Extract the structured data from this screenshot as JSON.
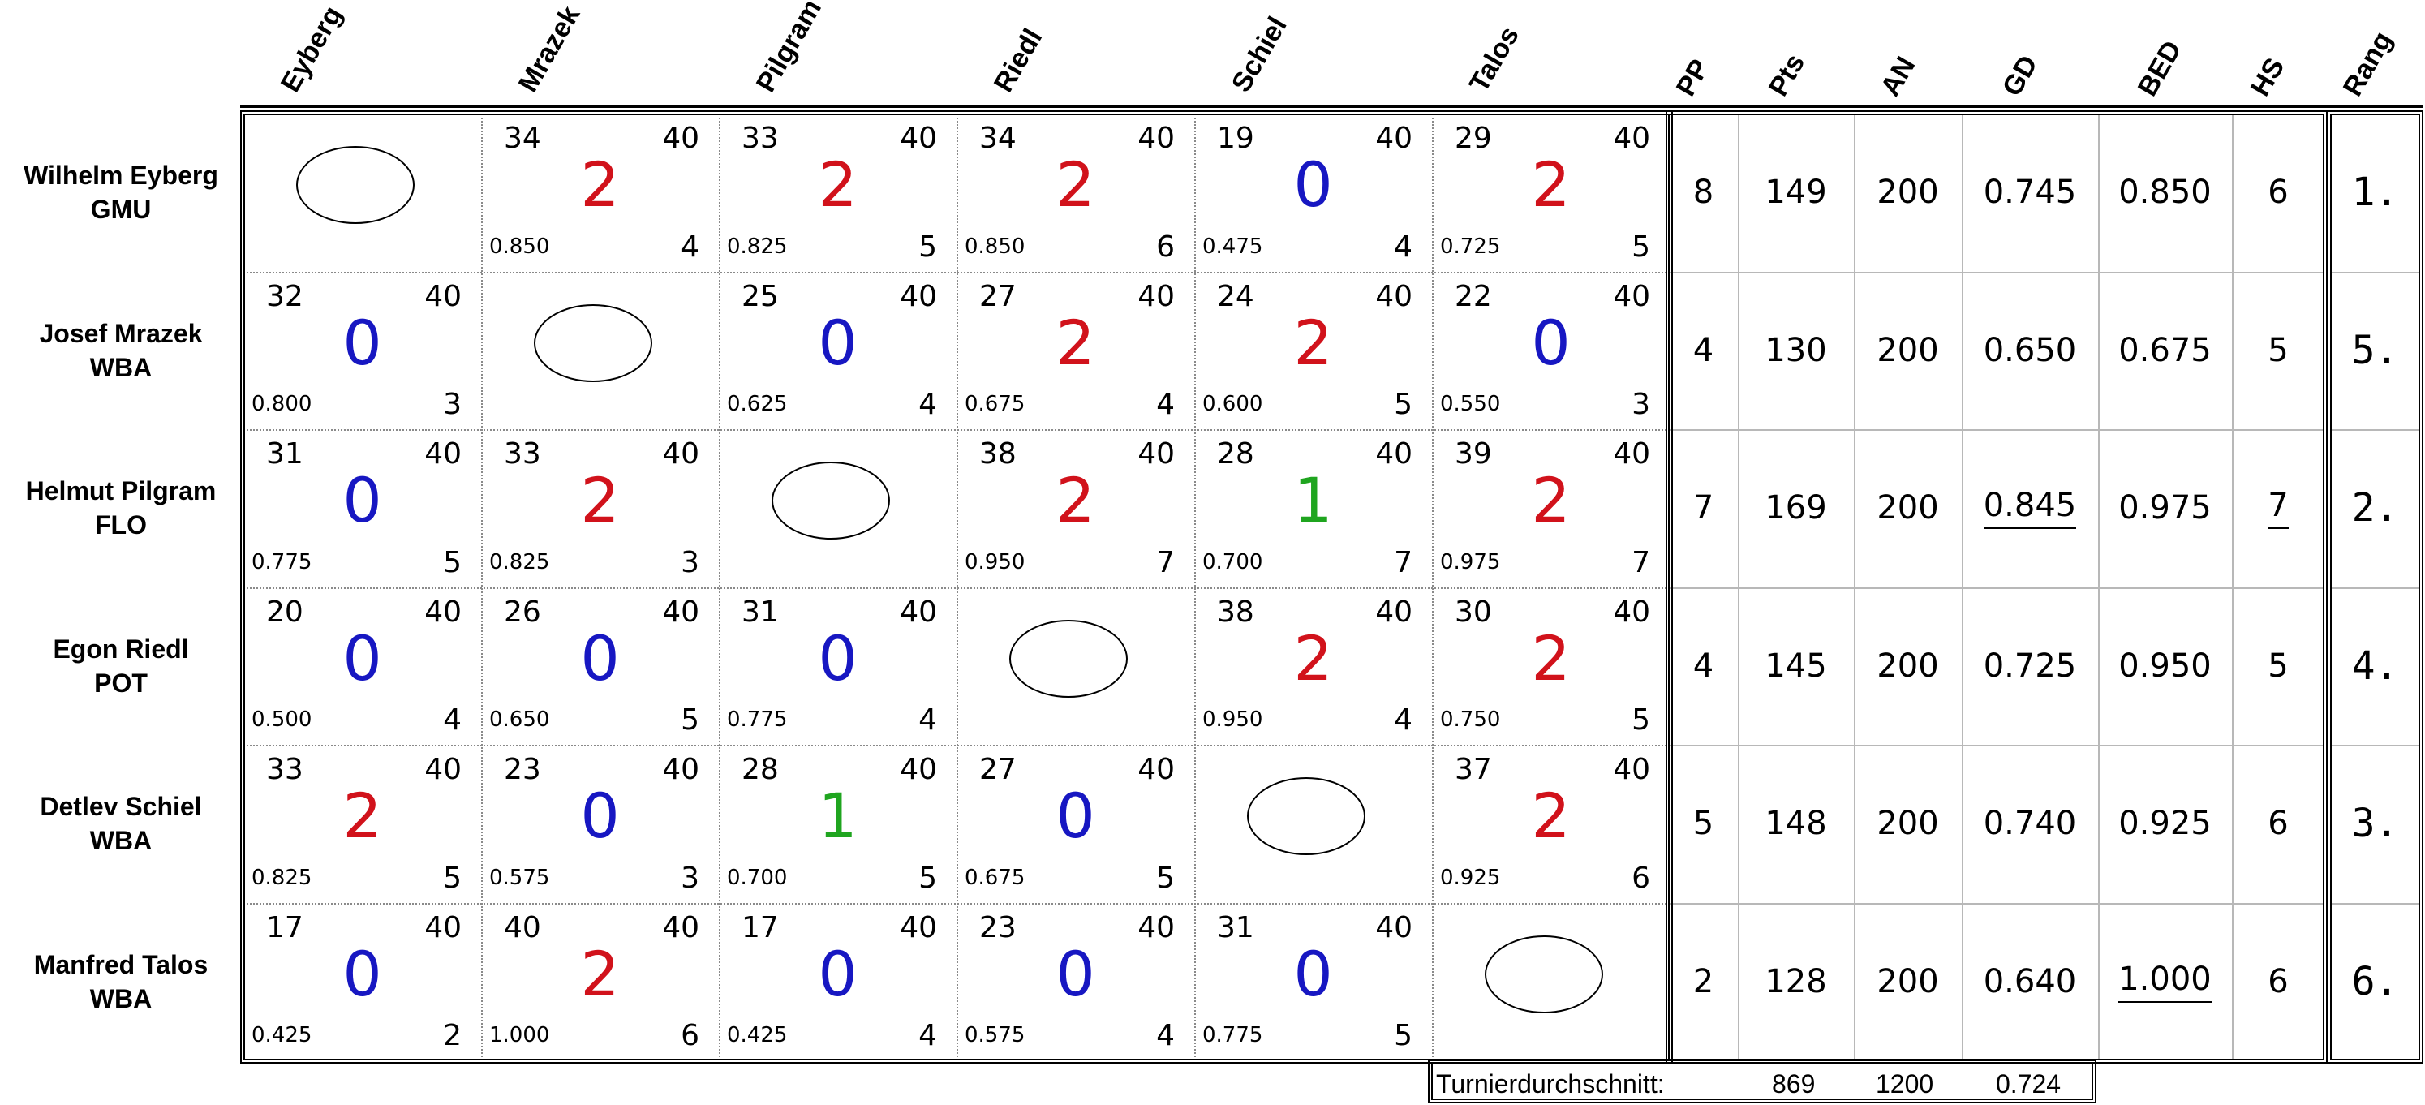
{
  "columns": [
    "Eyberg",
    "Mrazek",
    "Pilgram",
    "Riedl",
    "Schiel",
    "Talos"
  ],
  "stat_headers": [
    "PP",
    "Pts",
    "AN",
    "GD",
    "BED",
    "HS"
  ],
  "rank_header": "Rang",
  "players": [
    {
      "name": "Wilhelm Eyberg",
      "club": "GMU"
    },
    {
      "name": "Josef Mrazek",
      "club": "WBA"
    },
    {
      "name": "Helmut Pilgram",
      "club": "FLO"
    },
    {
      "name": "Egon Riedl",
      "club": "POT"
    },
    {
      "name": "Detlev Schiel",
      "club": "WBA"
    },
    {
      "name": "Manfred Talos",
      "club": "WBA"
    }
  ],
  "matrix": [
    [
      null,
      {
        "own": "34",
        "target": "40",
        "points": "2",
        "avg": "0.850",
        "hs": "4"
      },
      {
        "own": "33",
        "target": "40",
        "points": "2",
        "avg": "0.825",
        "hs": "5"
      },
      {
        "own": "34",
        "target": "40",
        "points": "2",
        "avg": "0.850",
        "hs": "6"
      },
      {
        "own": "19",
        "target": "40",
        "points": "0",
        "avg": "0.475",
        "hs": "4"
      },
      {
        "own": "29",
        "target": "40",
        "points": "2",
        "avg": "0.725",
        "hs": "5"
      }
    ],
    [
      {
        "own": "32",
        "target": "40",
        "points": "0",
        "avg": "0.800",
        "hs": "3"
      },
      null,
      {
        "own": "25",
        "target": "40",
        "points": "0",
        "avg": "0.625",
        "hs": "4"
      },
      {
        "own": "27",
        "target": "40",
        "points": "2",
        "avg": "0.675",
        "hs": "4"
      },
      {
        "own": "24",
        "target": "40",
        "points": "2",
        "avg": "0.600",
        "hs": "5"
      },
      {
        "own": "22",
        "target": "40",
        "points": "0",
        "avg": "0.550",
        "hs": "3"
      }
    ],
    [
      {
        "own": "31",
        "target": "40",
        "points": "0",
        "avg": "0.775",
        "hs": "5"
      },
      {
        "own": "33",
        "target": "40",
        "points": "2",
        "avg": "0.825",
        "hs": "3"
      },
      null,
      {
        "own": "38",
        "target": "40",
        "points": "2",
        "avg": "0.950",
        "hs": "7"
      },
      {
        "own": "28",
        "target": "40",
        "points": "1",
        "avg": "0.700",
        "hs": "7"
      },
      {
        "own": "39",
        "target": "40",
        "points": "2",
        "avg": "0.975",
        "hs": "7"
      }
    ],
    [
      {
        "own": "20",
        "target": "40",
        "points": "0",
        "avg": "0.500",
        "hs": "4"
      },
      {
        "own": "26",
        "target": "40",
        "points": "0",
        "avg": "0.650",
        "hs": "5"
      },
      {
        "own": "31",
        "target": "40",
        "points": "0",
        "avg": "0.775",
        "hs": "4"
      },
      null,
      {
        "own": "38",
        "target": "40",
        "points": "2",
        "avg": "0.950",
        "hs": "4"
      },
      {
        "own": "30",
        "target": "40",
        "points": "2",
        "avg": "0.750",
        "hs": "5"
      }
    ],
    [
      {
        "own": "33",
        "target": "40",
        "points": "2",
        "avg": "0.825",
        "hs": "5"
      },
      {
        "own": "23",
        "target": "40",
        "points": "0",
        "avg": "0.575",
        "hs": "3"
      },
      {
        "own": "28",
        "target": "40",
        "points": "1",
        "avg": "0.700",
        "hs": "5"
      },
      {
        "own": "27",
        "target": "40",
        "points": "0",
        "avg": "0.675",
        "hs": "5"
      },
      null,
      {
        "own": "37",
        "target": "40",
        "points": "2",
        "avg": "0.925",
        "hs": "6"
      }
    ],
    [
      {
        "own": "17",
        "target": "40",
        "points": "0",
        "avg": "0.425",
        "hs": "2"
      },
      {
        "own": "40",
        "target": "40",
        "points": "2",
        "avg": "1.000",
        "hs": "6"
      },
      {
        "own": "17",
        "target": "40",
        "points": "0",
        "avg": "0.425",
        "hs": "4"
      },
      {
        "own": "23",
        "target": "40",
        "points": "0",
        "avg": "0.575",
        "hs": "4"
      },
      {
        "own": "31",
        "target": "40",
        "points": "0",
        "avg": "0.775",
        "hs": "5"
      },
      null
    ]
  ],
  "stats": [
    {
      "pp": "8",
      "pts": "149",
      "an": "200",
      "gd": "0.745",
      "bed": "0.850",
      "hs": "6",
      "rang": "1.",
      "gd_best": false,
      "bed_best": false,
      "hs_best": false
    },
    {
      "pp": "4",
      "pts": "130",
      "an": "200",
      "gd": "0.650",
      "bed": "0.675",
      "hs": "5",
      "rang": "5.",
      "gd_best": false,
      "bed_best": false,
      "hs_best": false
    },
    {
      "pp": "7",
      "pts": "169",
      "an": "200",
      "gd": "0.845",
      "bed": "0.975",
      "hs": "7",
      "rang": "2.",
      "gd_best": true,
      "bed_best": false,
      "hs_best": true
    },
    {
      "pp": "4",
      "pts": "145",
      "an": "200",
      "gd": "0.725",
      "bed": "0.950",
      "hs": "5",
      "rang": "4.",
      "gd_best": false,
      "bed_best": false,
      "hs_best": false
    },
    {
      "pp": "5",
      "pts": "148",
      "an": "200",
      "gd": "0.740",
      "bed": "0.925",
      "hs": "6",
      "rang": "3.",
      "gd_best": false,
      "bed_best": false,
      "hs_best": false
    },
    {
      "pp": "2",
      "pts": "128",
      "an": "200",
      "gd": "0.640",
      "bed": "1.000",
      "hs": "6",
      "rang": "6.",
      "gd_best": false,
      "bed_best": true,
      "hs_best": false
    }
  ],
  "tournament_average": {
    "label": "Turnierdurchschnitt:",
    "pts": "869",
    "an": "1200",
    "gd": "0.724"
  },
  "colors": {
    "two_points": "#d1121b",
    "zero_points": "#1717c2",
    "one_point": "#1fa51f"
  }
}
